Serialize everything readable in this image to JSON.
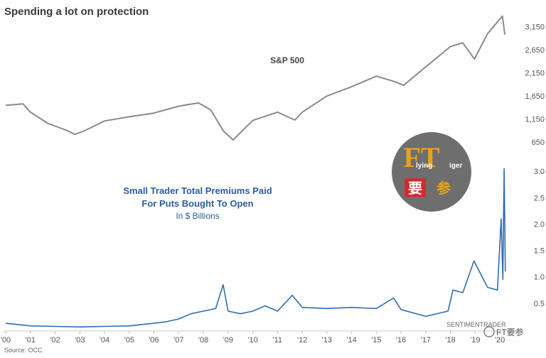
{
  "header": {
    "title": "Spending a lot on protection",
    "source": "Source: OCC",
    "credit": "SENTIMENTRADER"
  },
  "watermark": {
    "logo_text_ft": "FT",
    "logo_text_lying": "lying",
    "logo_text_iger": "iger",
    "logo_text_yao": "要",
    "logo_text_can": "参",
    "footer_text": "FT要参"
  },
  "chart_data": [
    {
      "type": "line",
      "series": [
        {
          "name": "S&P 500",
          "color": "#8a8a8a"
        }
      ],
      "x": [
        2000.0,
        2000.7,
        2001.0,
        2001.7,
        2002.5,
        2002.8,
        2003.2,
        2004.0,
        2005.0,
        2006.0,
        2007.0,
        2007.8,
        2008.3,
        2008.8,
        2009.2,
        2010.0,
        2011.0,
        2011.7,
        2012.0,
        2013.0,
        2014.0,
        2015.0,
        2015.8,
        2016.1,
        2017.0,
        2018.0,
        2018.5,
        2018.97,
        2019.5,
        2020.1,
        2020.2
      ],
      "y": [
        1450,
        1480,
        1300,
        1060,
        900,
        820,
        900,
        1110,
        1200,
        1280,
        1430,
        1500,
        1350,
        900,
        700,
        1120,
        1300,
        1130,
        1300,
        1650,
        1850,
        2080,
        1950,
        1880,
        2280,
        2720,
        2800,
        2450,
        3000,
        3380,
        2980
      ],
      "xlim": [
        2000,
        2020.6
      ],
      "ylim": [
        500,
        3450
      ],
      "y_ticks": [
        650,
        1150,
        1650,
        2150,
        2650,
        3150
      ],
      "y_tick_labels": [
        "650",
        "1,150",
        "1,650",
        "2,150",
        "2,650",
        "3,150"
      ],
      "label": "S&P 500",
      "grid": false
    },
    {
      "type": "line",
      "series": [
        {
          "name": "Small Trader Total Premiums Paid For Puts Bought To Open",
          "color": "#2f6db0"
        }
      ],
      "x": [
        2000.0,
        2001.0,
        2002.0,
        2003.0,
        2004.0,
        2005.0,
        2006.0,
        2006.5,
        2007.0,
        2007.5,
        2008.0,
        2008.5,
        2008.8,
        2009.0,
        2009.5,
        2010.0,
        2010.5,
        2011.0,
        2011.6,
        2012.0,
        2013.0,
        2014.0,
        2015.0,
        2015.7,
        2016.0,
        2017.0,
        2017.9,
        2018.1,
        2018.5,
        2018.95,
        2019.5,
        2019.9,
        2020.05,
        2020.12,
        2020.17,
        2020.22
      ],
      "y": [
        0.12,
        0.07,
        0.06,
        0.05,
        0.06,
        0.07,
        0.12,
        0.15,
        0.2,
        0.3,
        0.35,
        0.4,
        0.85,
        0.35,
        0.3,
        0.35,
        0.45,
        0.35,
        0.65,
        0.42,
        0.4,
        0.42,
        0.4,
        0.6,
        0.38,
        0.25,
        0.35,
        0.75,
        0.7,
        1.3,
        0.8,
        0.75,
        2.1,
        0.95,
        3.05,
        1.1
      ],
      "xlim": [
        2000,
        2020.6
      ],
      "ylim": [
        0,
        3.15
      ],
      "y_ticks": [
        0.5,
        1.0,
        1.5,
        2.0,
        2.5,
        3.0
      ],
      "y_tick_labels": [
        "0.5",
        "1.0",
        "1.5",
        "2.0",
        "2.5",
        "3.0"
      ],
      "label": "Small Trader Total Premiums Paid",
      "label_line2": "For Puts Bought To Open",
      "unit_label": "In $ Billions",
      "grid": false
    }
  ],
  "x_axis": {
    "ticks": [
      2000,
      2001,
      2002,
      2003,
      2004,
      2005,
      2006,
      2007,
      2008,
      2009,
      2010,
      2011,
      2012,
      2013,
      2014,
      2015,
      2016,
      2017,
      2018,
      2019,
      2020
    ],
    "labels": [
      "'00",
      "'01",
      "'02",
      "'03",
      "'04",
      "'05",
      "'06",
      "'07",
      "'08",
      "'09",
      "'10",
      "'11",
      "'12",
      "'13",
      "'14",
      "'15",
      "'16",
      "'17",
      "'18",
      "'19",
      "'20"
    ]
  }
}
